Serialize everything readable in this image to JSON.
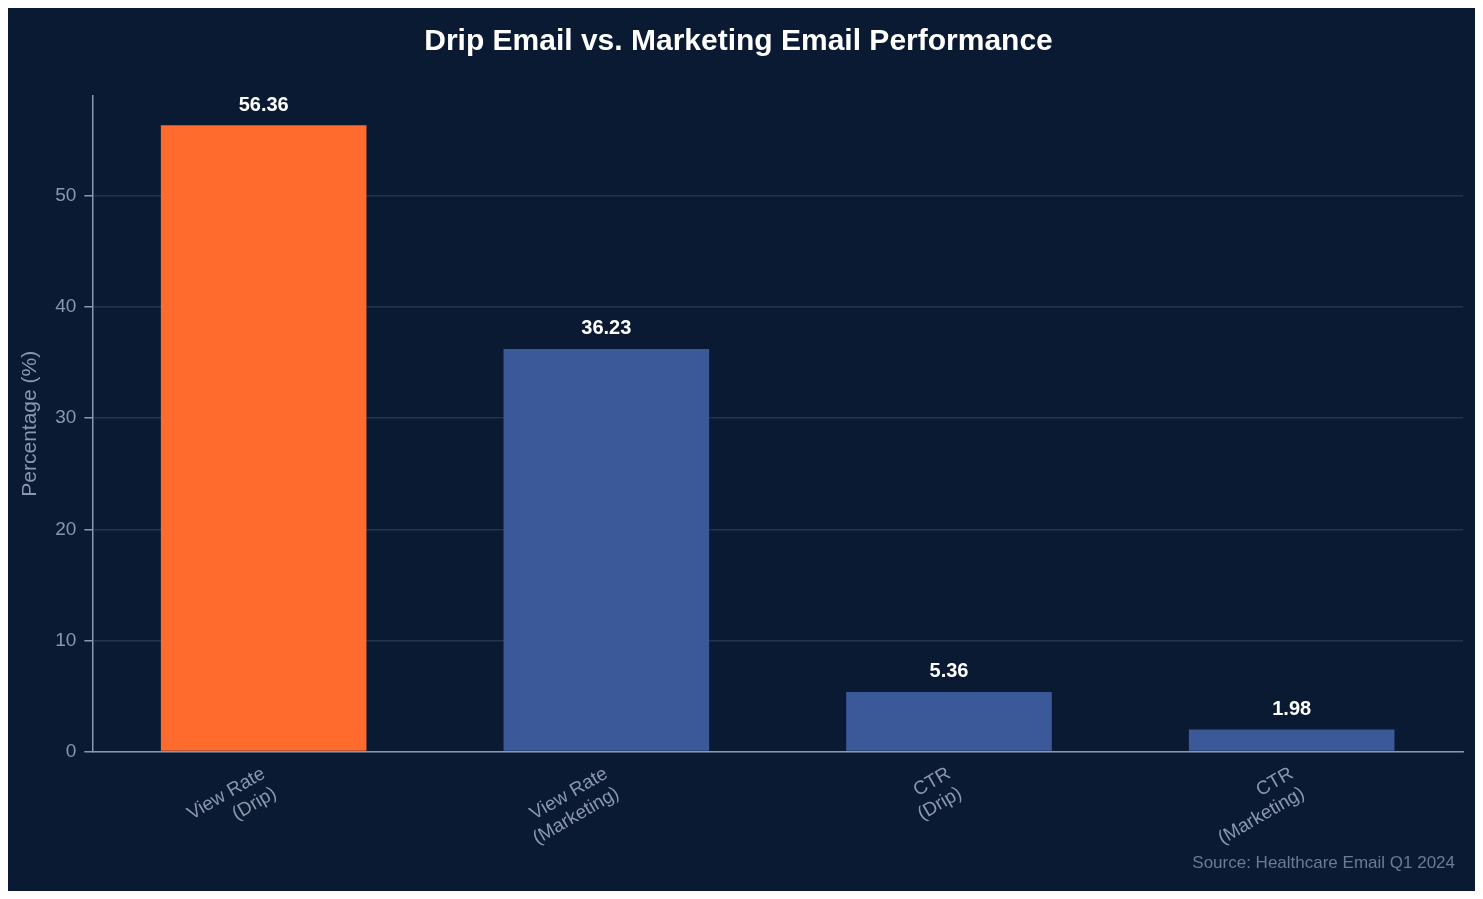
{
  "chart_data": {
    "type": "bar",
    "title": "Drip Email vs. Marketing Email Performance",
    "ylabel": "Percentage (%)",
    "categories": [
      "View Rate\n(Drip)",
      "View Rate\n(Marketing)",
      "CTR\n(Drip)",
      "CTR\n(Marketing)"
    ],
    "values": [
      56.36,
      36.23,
      5.36,
      1.98
    ],
    "colors": [
      "#ff6b2c",
      "#3b5998",
      "#3b5998",
      "#3b5998"
    ],
    "ylim": [
      0,
      59
    ],
    "yticks": [
      0,
      10,
      20,
      30,
      40,
      50
    ],
    "grid": "y",
    "data_labels": true,
    "annotations": [
      "Source: Healthcare Email Q1 2024"
    ]
  }
}
